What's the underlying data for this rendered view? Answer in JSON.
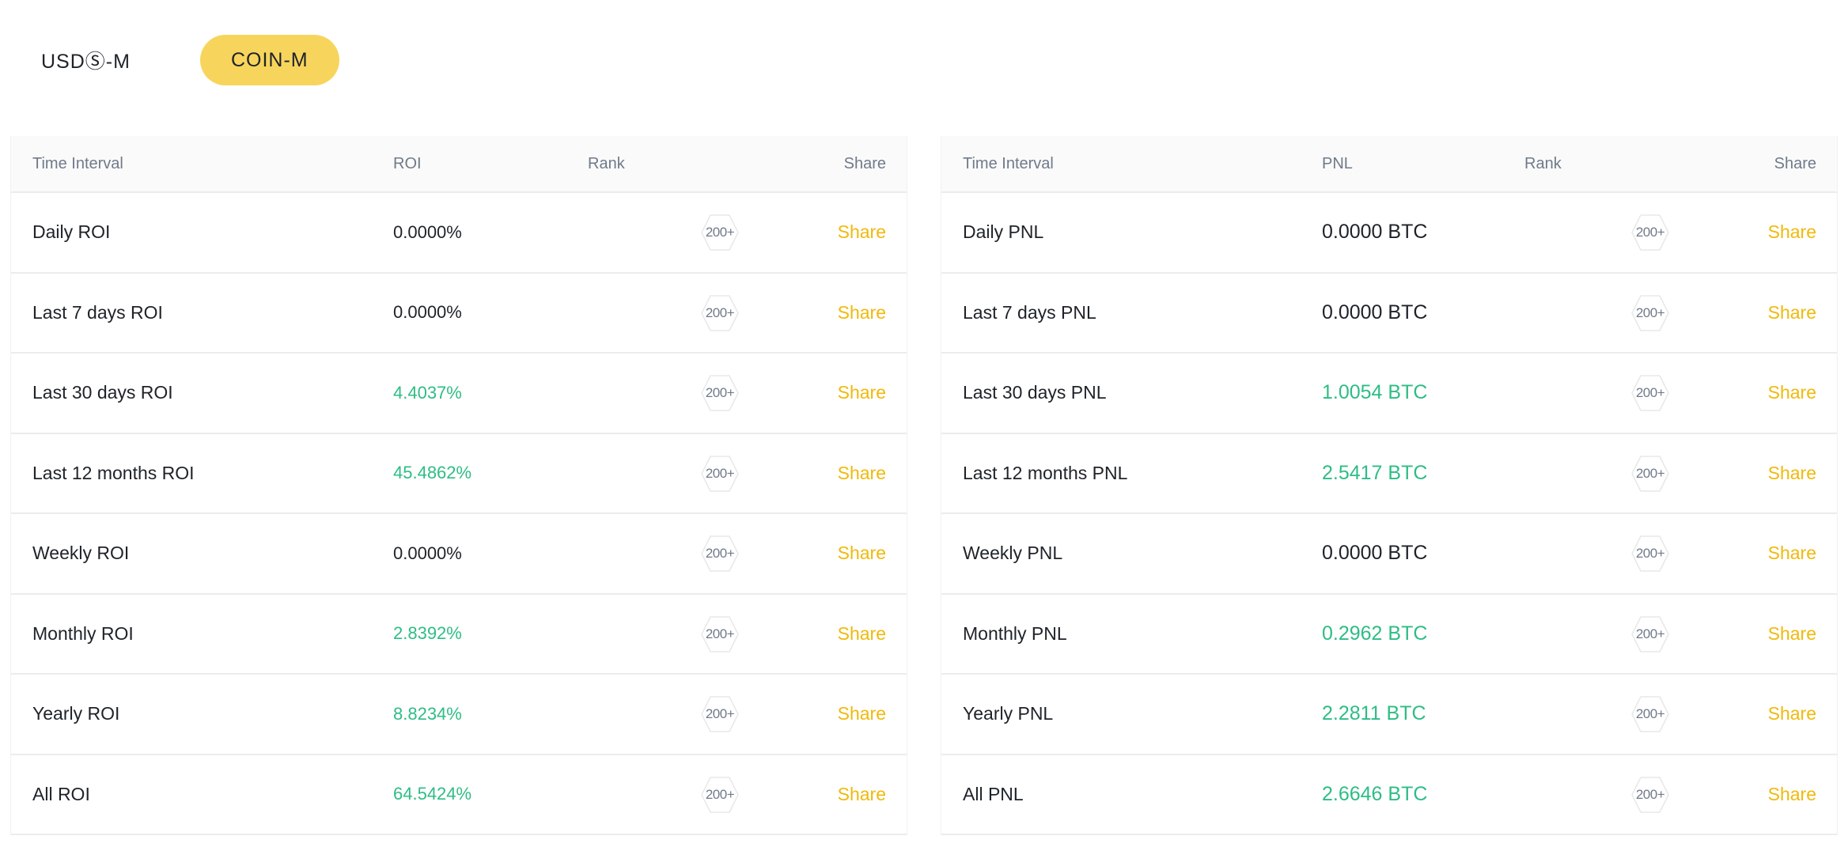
{
  "tabs": [
    {
      "label": "USDⓈ-M",
      "active": false
    },
    {
      "label": "COIN-M",
      "active": true
    }
  ],
  "colors": {
    "accent_yellow": "#f7d55c",
    "share_link": "#f0b90b",
    "positive_green": "#2ebd85",
    "text_primary": "#1e2329",
    "text_secondary": "#707a8a"
  },
  "roi_table": {
    "headers": {
      "interval": "Time Interval",
      "value": "ROI",
      "rank": "Rank",
      "share": "Share"
    },
    "rows": [
      {
        "interval": "Daily ROI",
        "value": "0.0000%",
        "positive": false,
        "rank": "200+",
        "share": "Share"
      },
      {
        "interval": "Last 7 days ROI",
        "value": "0.0000%",
        "positive": false,
        "rank": "200+",
        "share": "Share"
      },
      {
        "interval": "Last 30 days ROI",
        "value": "4.4037%",
        "positive": true,
        "rank": "200+",
        "share": "Share"
      },
      {
        "interval": "Last 12 months ROI",
        "value": "45.4862%",
        "positive": true,
        "rank": "200+",
        "share": "Share"
      },
      {
        "interval": "Weekly ROI",
        "value": "0.0000%",
        "positive": false,
        "rank": "200+",
        "share": "Share"
      },
      {
        "interval": "Monthly ROI",
        "value": "2.8392%",
        "positive": true,
        "rank": "200+",
        "share": "Share"
      },
      {
        "interval": "Yearly ROI",
        "value": "8.8234%",
        "positive": true,
        "rank": "200+",
        "share": "Share"
      },
      {
        "interval": "All ROI",
        "value": "64.5424%",
        "positive": true,
        "rank": "200+",
        "share": "Share"
      }
    ]
  },
  "pnl_table": {
    "headers": {
      "interval": "Time Interval",
      "value": "PNL",
      "rank": "Rank",
      "share": "Share"
    },
    "rows": [
      {
        "interval": "Daily PNL",
        "value": "0.0000 BTC",
        "positive": false,
        "rank": "200+",
        "share": "Share"
      },
      {
        "interval": "Last 7 days PNL",
        "value": "0.0000 BTC",
        "positive": false,
        "rank": "200+",
        "share": "Share"
      },
      {
        "interval": "Last 30 days PNL",
        "value": "1.0054 BTC",
        "positive": true,
        "rank": "200+",
        "share": "Share"
      },
      {
        "interval": "Last 12 months PNL",
        "value": "2.5417 BTC",
        "positive": true,
        "rank": "200+",
        "share": "Share"
      },
      {
        "interval": "Weekly PNL",
        "value": "0.0000 BTC",
        "positive": false,
        "rank": "200+",
        "share": "Share"
      },
      {
        "interval": "Monthly PNL",
        "value": "0.2962 BTC",
        "positive": true,
        "rank": "200+",
        "share": "Share"
      },
      {
        "interval": "Yearly PNL",
        "value": "2.2811 BTC",
        "positive": true,
        "rank": "200+",
        "share": "Share"
      },
      {
        "interval": "All PNL",
        "value": "2.6646 BTC",
        "positive": true,
        "rank": "200+",
        "share": "Share"
      }
    ]
  }
}
